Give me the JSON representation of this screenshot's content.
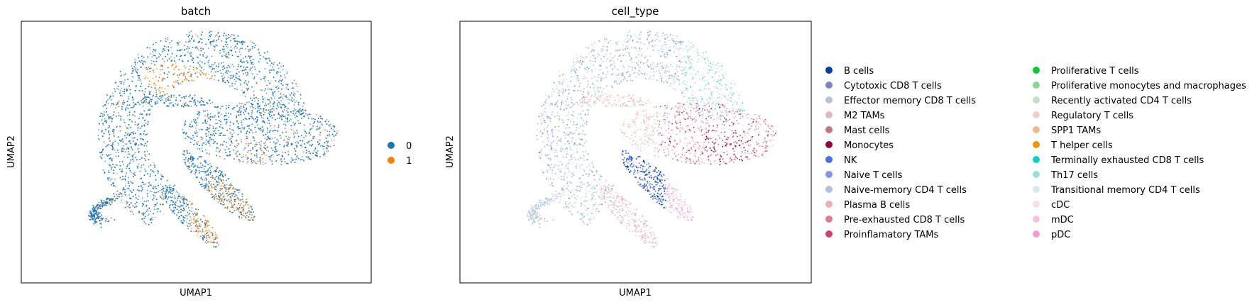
{
  "chart_data": [
    {
      "type": "scatter",
      "title": "batch",
      "xlabel": "UMAP1",
      "ylabel": "UMAP2",
      "grid": false,
      "legend_position": "right",
      "legend": [
        {
          "label": "0",
          "color": "#1f77b4"
        },
        {
          "label": "1",
          "color": "#ff7f0e"
        }
      ]
    },
    {
      "type": "scatter",
      "title": "cell_type",
      "xlabel": "UMAP1",
      "ylabel": "UMAP2",
      "grid": false,
      "legend_position": "right",
      "legend": [
        {
          "label": "B cells",
          "color": "#023fa5"
        },
        {
          "label": "Cytotoxic CD8 T cells",
          "color": "#7d87b9"
        },
        {
          "label": "Effector memory CD8 T cells",
          "color": "#bec1d4"
        },
        {
          "label": "M2 TAMs",
          "color": "#d6bcc0"
        },
        {
          "label": "Mast cells",
          "color": "#bb7784"
        },
        {
          "label": "Monocytes",
          "color": "#8e063b"
        },
        {
          "label": "NK",
          "color": "#4a6fe3"
        },
        {
          "label": "Naive T cells",
          "color": "#8595e1"
        },
        {
          "label": "Naive-memory CD4 T cells",
          "color": "#b5bbe3"
        },
        {
          "label": "Plasma B cells",
          "color": "#e6afb9"
        },
        {
          "label": "Pre-exhausted CD8 T cells",
          "color": "#e07b91"
        },
        {
          "label": "Proinflamatory TAMs",
          "color": "#d33f6a"
        },
        {
          "label": "Proliferative T cells",
          "color": "#11c638"
        },
        {
          "label": "Proliferative monocytes and macrophages",
          "color": "#8dd593"
        },
        {
          "label": "Recently activated CD4 T cells",
          "color": "#c6dec7"
        },
        {
          "label": "Regulatory T cells",
          "color": "#ead3c6"
        },
        {
          "label": "SPP1 TAMs",
          "color": "#f0b98d"
        },
        {
          "label": "T helper cells",
          "color": "#ef9708"
        },
        {
          "label": "Terminally exhausted CD8 T cells",
          "color": "#0fcfc0"
        },
        {
          "label": "Th17 cells",
          "color": "#9cded6"
        },
        {
          "label": "Transitional memory CD4 T cells",
          "color": "#d5eae7"
        },
        {
          "label": "cDC",
          "color": "#f3e1eb"
        },
        {
          "label": "mDC",
          "color": "#f6c4e1"
        },
        {
          "label": "pDC",
          "color": "#f79cd4"
        }
      ]
    }
  ]
}
